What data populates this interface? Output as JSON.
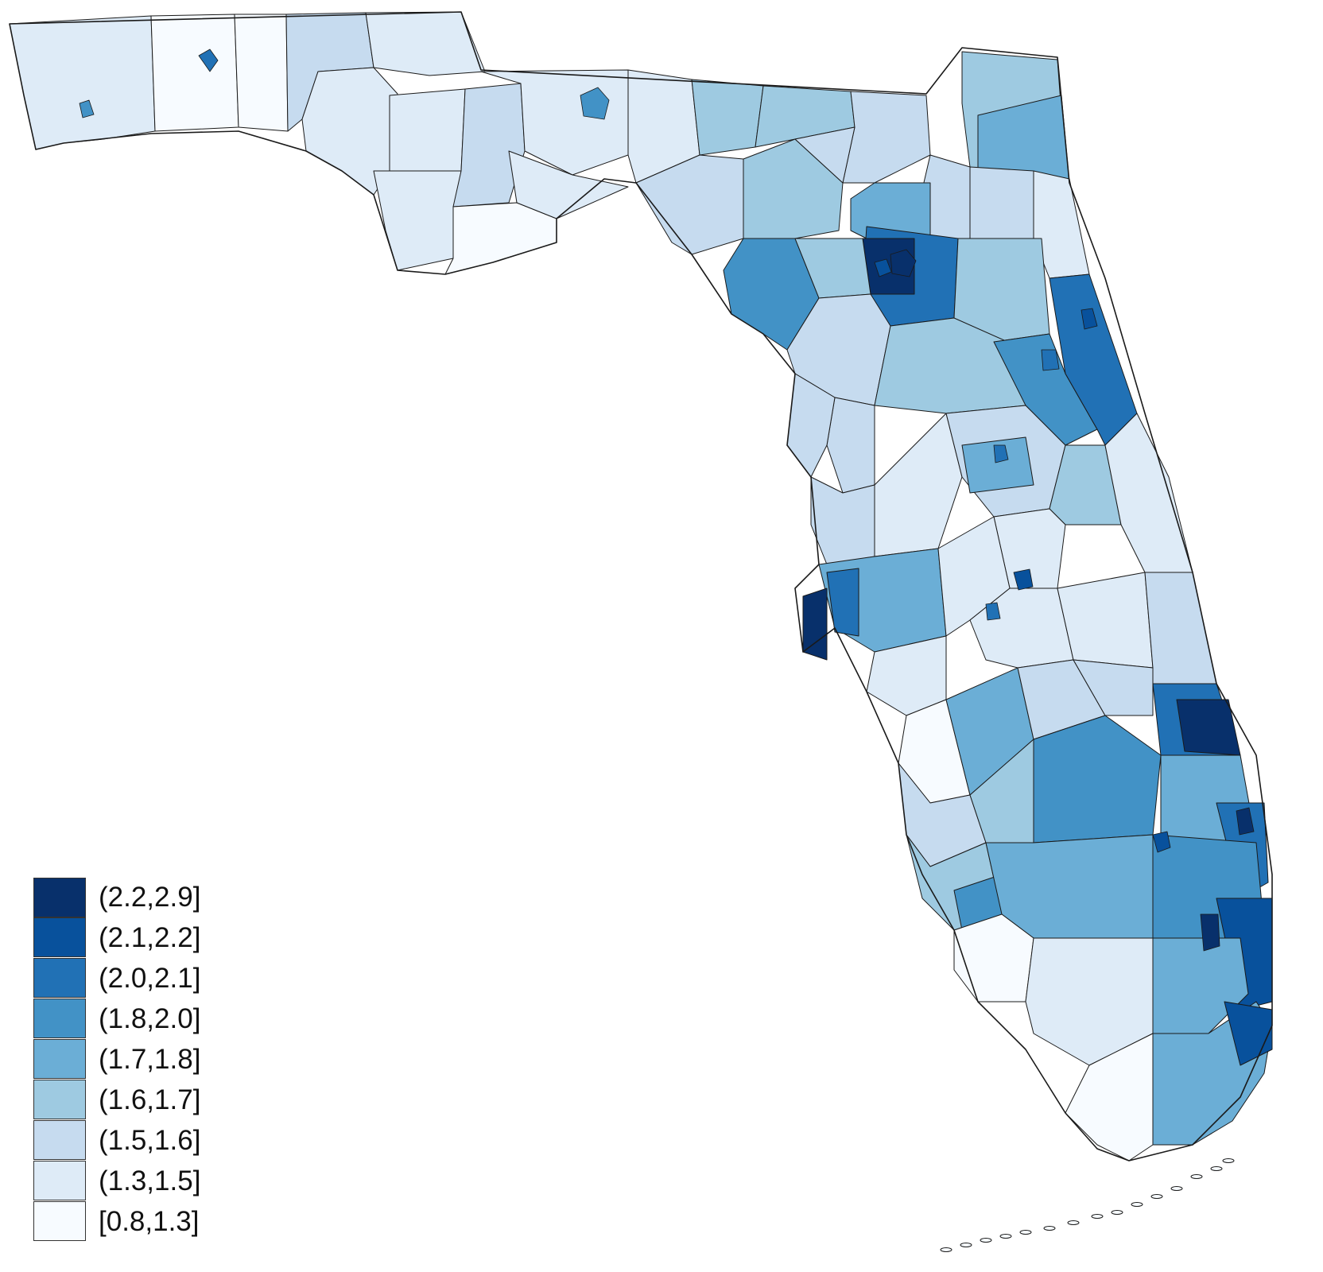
{
  "map": {
    "region": "Florida",
    "classes": [
      {
        "label": "(2.2,2.9]",
        "color": "#08306b"
      },
      {
        "label": "(2.1,2.2]",
        "color": "#08519c"
      },
      {
        "label": "(2.0,2.1]",
        "color": "#2171b5"
      },
      {
        "label": "(1.8,2.0]",
        "color": "#4292c6"
      },
      {
        "label": "(1.7,1.8]",
        "color": "#6baed6"
      },
      {
        "label": "(1.6,1.7]",
        "color": "#9ecae1"
      },
      {
        "label": "(1.5,1.6]",
        "color": "#c6dbef"
      },
      {
        "label": "(1.3,1.5]",
        "color": "#deebf7"
      },
      {
        "label": "[0.8,1.3]",
        "color": "#f7fbff"
      }
    ],
    "outline_color": "#1a1a1a"
  }
}
